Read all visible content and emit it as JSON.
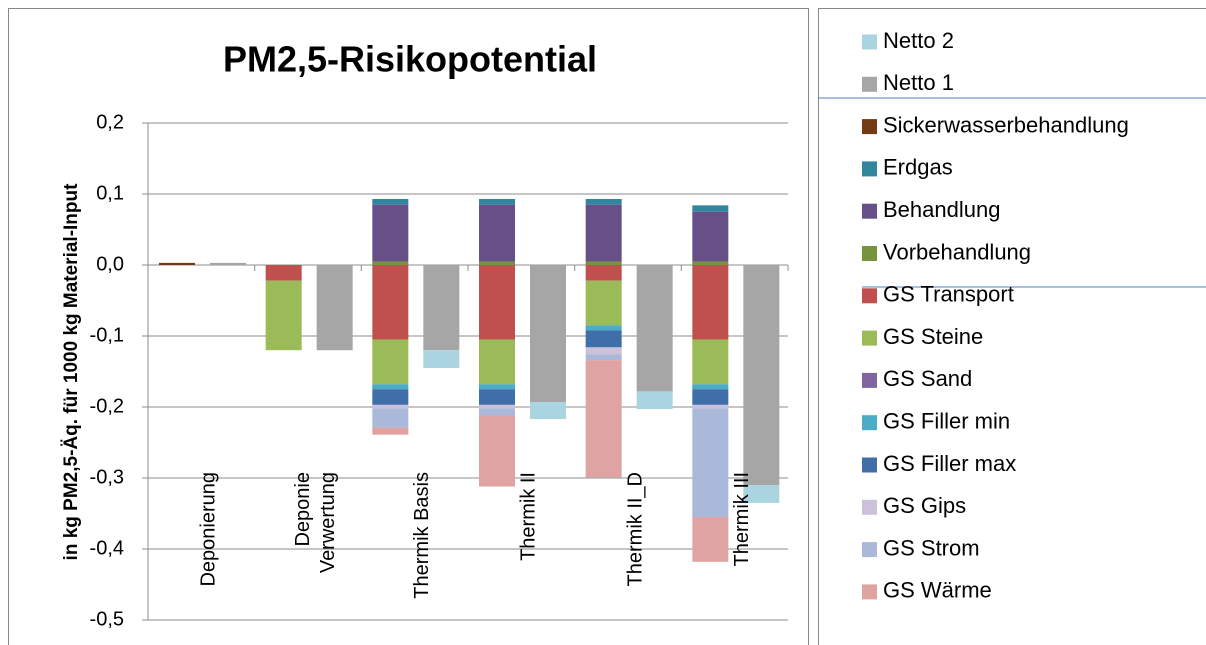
{
  "chart_data": {
    "type": "bar",
    "title": "PM2,5-Risikopotential",
    "y_label": "in kg PM2,5-Äq. für 1000 kg Material-Input",
    "categories": [
      "Deponierung",
      "Deponie Verwertung",
      "Thermik Basis",
      "Thermik II",
      "Thermik II_D",
      "Thermik III"
    ],
    "ylim": [
      -0.5,
      0.2
    ],
    "yticks": [
      {
        "value": 0.2,
        "label": "0,2"
      },
      {
        "value": 0.1,
        "label": "0,1"
      },
      {
        "value": 0,
        "label": "0,0"
      },
      {
        "value": -0.1,
        "label": "-0,1"
      },
      {
        "value": -0.2,
        "label": "-0,2"
      },
      {
        "value": -0.3,
        "label": "-0,3"
      },
      {
        "value": -0.4,
        "label": "-0,4"
      },
      {
        "value": -0.5,
        "label": "-0,5"
      }
    ],
    "grid": true,
    "series": [
      {
        "name": "Netto 2",
        "color": "#a9d4e0",
        "stack": 1,
        "values": [
          0,
          0,
          -0.025,
          -0.024,
          -0.025,
          -0.025
        ]
      },
      {
        "name": "Netto 1",
        "color": "#a6a6a6",
        "stack": 1,
        "values": [
          0.003,
          -0.12,
          -0.12,
          -0.193,
          -0.178,
          -0.31
        ]
      },
      {
        "name": "Sickerwasserbehandlung",
        "color": "#743b12",
        "stack": 0,
        "values": [
          0.003,
          0,
          0,
          0,
          0,
          0
        ]
      },
      {
        "name": "Erdgas",
        "color": "#31859c",
        "stack": 0,
        "values": [
          0,
          0,
          0.008,
          0.008,
          0.008,
          0.009
        ]
      },
      {
        "name": "Behandlung",
        "color": "#674f88",
        "stack": 0,
        "values": [
          0,
          0,
          0.08,
          0.08,
          0.08,
          0.07
        ]
      },
      {
        "name": "Vorbehandlung",
        "color": "#77933c",
        "stack": 0,
        "values": [
          0,
          0,
          0.005,
          0.005,
          0.005,
          0.005
        ]
      },
      {
        "name": "GS Transport",
        "color": "#c0504d",
        "stack": 0,
        "values": [
          0,
          -0.022,
          -0.105,
          -0.105,
          -0.022,
          -0.105
        ]
      },
      {
        "name": "GS Steine",
        "color": "#9bbb59",
        "stack": 0,
        "values": [
          0,
          -0.098,
          -0.063,
          -0.063,
          -0.063,
          -0.063
        ]
      },
      {
        "name": "GS Sand",
        "color": "#8064a2",
        "stack": 0,
        "values": [
          0,
          0,
          0,
          0,
          0,
          0
        ]
      },
      {
        "name": "GS Filler min",
        "color": "#4bacc6",
        "stack": 0,
        "values": [
          0,
          0,
          -0.007,
          -0.007,
          -0.007,
          -0.007
        ]
      },
      {
        "name": "GS Filler max",
        "color": "#3f6ea8",
        "stack": 0,
        "values": [
          0,
          0,
          -0.022,
          -0.022,
          -0.024,
          -0.022
        ]
      },
      {
        "name": "GS Gips",
        "color": "#ccc1da",
        "stack": 0,
        "values": [
          0,
          0,
          -0.005,
          -0.005,
          -0.01,
          -0.005
        ]
      },
      {
        "name": "GS Strom",
        "color": "#aab9d9",
        "stack": 0,
        "values": [
          0,
          0,
          -0.027,
          -0.01,
          -0.008,
          -0.153
        ]
      },
      {
        "name": "GS Wärme",
        "color": "#dfa3a2",
        "stack": 0,
        "values": [
          0,
          0,
          -0.01,
          -0.1,
          -0.165,
          -0.063
        ]
      }
    ]
  }
}
